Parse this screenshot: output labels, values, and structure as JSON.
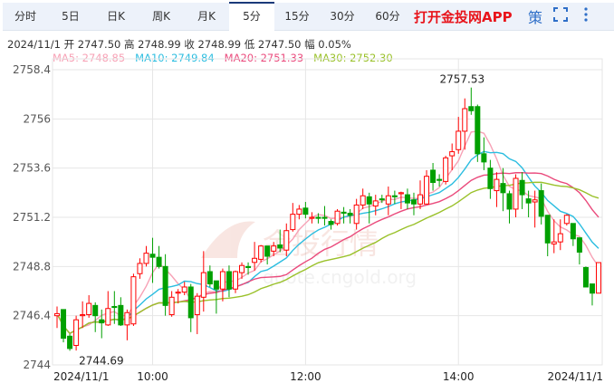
{
  "tabs": [
    {
      "label": "分时"
    },
    {
      "label": "5日"
    },
    {
      "label": "日K"
    },
    {
      "label": "周K"
    },
    {
      "label": "月K"
    },
    {
      "label": "5分",
      "active": true
    },
    {
      "label": "15分"
    },
    {
      "label": "30分"
    },
    {
      "label": "60分"
    }
  ],
  "promo": "打开金投网APP",
  "icons": {
    "strategy": "策",
    "fullscreen": "fullscreen-icon",
    "more": "more-vertical-icon"
  },
  "info": {
    "date": "2024/11/1",
    "open_label": "开",
    "open": "2747.50",
    "high_label": "高",
    "high": "2748.99",
    "close_label": "收",
    "close": "2748.99",
    "low_label": "低",
    "low": "2747.50",
    "change_label": "幅",
    "change": "0.05%"
  },
  "ma": {
    "ma5": "MA5: 2748.85",
    "ma10": "MA10: 2749.84",
    "ma20": "MA20: 2751.33",
    "ma30": "MA30: 2752.30"
  },
  "colors": {
    "up": "#ff0000",
    "down": "#00a000",
    "ma5": "#f7a1b5",
    "ma10": "#2bbde0",
    "ma20": "#ea4a7c",
    "ma30": "#9ac12a",
    "grid": "#e6e6e6"
  },
  "watermark": {
    "cn": "金投行情",
    "url": "quote.cngold.org"
  },
  "chart_data": {
    "type": "candlestick",
    "ylim": [
      2744,
      2758.4
    ],
    "yticks": [
      "2758.4",
      "2756",
      "2753.6",
      "2751.2",
      "2748.8",
      "2746.4",
      "2744"
    ],
    "xtick_labels": [
      {
        "label": "2024/11/1",
        "index": 0
      },
      {
        "label": "10:00",
        "index": 15
      },
      {
        "label": "12:00",
        "index": 39
      },
      {
        "label": "14:00",
        "index": 63
      },
      {
        "label": "2024/11/1",
        "index": 85
      }
    ],
    "max_label": "2757.53",
    "min_label": "2744.69",
    "grid": true,
    "ohlc": [
      [
        2746.4,
        2746.85,
        2745.8,
        2746.5
      ],
      [
        2746.7,
        2746.7,
        2745.1,
        2745.3
      ],
      [
        2745.4,
        2745.5,
        2744.69,
        2744.8
      ],
      [
        2744.95,
        2746.4,
        2744.7,
        2746.2
      ],
      [
        2746.4,
        2747.1,
        2745.8,
        2746.45
      ],
      [
        2746.45,
        2747.4,
        2746.3,
        2747.0
      ],
      [
        2746.9,
        2747.05,
        2745.6,
        2746.4
      ],
      [
        2746.2,
        2746.7,
        2745.3,
        2746.05
      ],
      [
        2745.95,
        2747.6,
        2745.9,
        2746.75
      ],
      [
        2746.85,
        2747.6,
        2746.0,
        2746.8
      ],
      [
        2746.9,
        2747.3,
        2745.9,
        2745.95
      ],
      [
        2745.95,
        2746.7,
        2745.2,
        2746.55
      ],
      [
        2746.0,
        2748.45,
        2745.9,
        2748.3
      ],
      [
        2748.45,
        2749.2,
        2748.2,
        2748.95
      ],
      [
        2748.95,
        2749.8,
        2748.8,
        2749.45
      ],
      [
        2749.4,
        2750.2,
        2748.0,
        2749.25
      ],
      [
        2749.25,
        2749.8,
        2748.7,
        2748.8
      ],
      [
        2748.8,
        2749.4,
        2746.4,
        2746.9
      ],
      [
        2746.45,
        2747.6,
        2746.35,
        2747.3
      ],
      [
        2747.5,
        2747.7,
        2747.0,
        2747.55
      ],
      [
        2747.55,
        2748.05,
        2747.4,
        2747.8
      ],
      [
        2747.8,
        2747.95,
        2745.6,
        2746.3
      ],
      [
        2746.45,
        2747.5,
        2745.5,
        2747.35
      ],
      [
        2747.3,
        2749.55,
        2746.6,
        2748.5
      ],
      [
        2748.55,
        2748.85,
        2747.8,
        2747.95
      ],
      [
        2748.1,
        2748.1,
        2746.5,
        2747.7
      ],
      [
        2747.7,
        2748.7,
        2747.1,
        2748.55
      ],
      [
        2748.55,
        2748.85,
        2747.3,
        2747.7
      ],
      [
        2747.7,
        2748.6,
        2747.5,
        2748.55
      ],
      [
        2748.5,
        2749.0,
        2748.2,
        2748.85
      ],
      [
        2748.8,
        2749.0,
        2748.4,
        2748.75
      ],
      [
        2749.0,
        2750.0,
        2748.6,
        2749.2
      ],
      [
        2749.15,
        2749.85,
        2749.0,
        2749.8
      ],
      [
        2749.8,
        2749.8,
        2748.9,
        2749.3
      ],
      [
        2749.55,
        2750.0,
        2749.3,
        2749.8
      ],
      [
        2749.85,
        2750.6,
        2749.5,
        2749.7
      ],
      [
        2749.6,
        2750.9,
        2749.3,
        2750.55
      ],
      [
        2750.6,
        2751.9,
        2750.5,
        2751.35
      ],
      [
        2751.35,
        2751.8,
        2751.1,
        2751.6
      ],
      [
        2751.65,
        2751.95,
        2751.15,
        2751.35
      ],
      [
        2751.15,
        2751.45,
        2750.9,
        2751.2
      ],
      [
        2751.2,
        2751.4,
        2750.9,
        2751.15
      ],
      [
        2751.2,
        2751.75,
        2750.8,
        2751.15
      ],
      [
        2751.0,
        2751.1,
        2750.6,
        2750.85
      ],
      [
        2750.9,
        2751.6,
        2750.8,
        2751.5
      ],
      [
        2751.45,
        2751.7,
        2750.9,
        2751.4
      ],
      [
        2751.4,
        2751.6,
        2750.9,
        2751.3
      ],
      [
        2750.9,
        2752.1,
        2750.6,
        2751.8
      ],
      [
        2751.8,
        2752.6,
        2751.6,
        2752.25
      ],
      [
        2752.2,
        2752.4,
        2750.9,
        2751.85
      ],
      [
        2751.75,
        2752.3,
        2751.3,
        2752.0
      ],
      [
        2752.1,
        2752.3,
        2751.9,
        2752.05
      ],
      [
        2751.85,
        2752.7,
        2751.3,
        2752.25
      ],
      [
        2752.25,
        2752.5,
        2751.85,
        2752.2
      ],
      [
        2752.35,
        2752.45,
        2751.6,
        2752.4
      ],
      [
        2752.3,
        2752.6,
        2751.6,
        2751.9
      ],
      [
        2752.05,
        2752.4,
        2751.3,
        2751.85
      ],
      [
        2751.85,
        2753.0,
        2751.6,
        2752.3
      ],
      [
        2751.85,
        2753.5,
        2751.9,
        2753.2
      ],
      [
        2753.5,
        2753.85,
        2752.5,
        2752.9
      ],
      [
        2753.05,
        2753.3,
        2752.7,
        2753.0
      ],
      [
        2752.95,
        2754.2,
        2752.8,
        2754.1
      ],
      [
        2754.2,
        2754.8,
        2753.5,
        2754.4
      ],
      [
        2754.5,
        2756.1,
        2754.3,
        2755.4
      ],
      [
        2755.4,
        2757.0,
        2754.5,
        2756.5
      ],
      [
        2756.6,
        2757.53,
        2756.2,
        2756.4
      ],
      [
        2756.6,
        2756.7,
        2753.9,
        2754.3
      ],
      [
        2754.3,
        2755.1,
        2753.5,
        2753.9
      ],
      [
        2753.6,
        2754.0,
        2752.1,
        2752.6
      ],
      [
        2752.5,
        2753.4,
        2751.7,
        2753.05
      ],
      [
        2752.85,
        2753.6,
        2751.5,
        2752.4
      ],
      [
        2752.35,
        2752.5,
        2750.9,
        2751.6
      ],
      [
        2751.6,
        2753.3,
        2751.2,
        2753.1
      ],
      [
        2753.0,
        2753.4,
        2751.6,
        2752.3
      ],
      [
        2752.1,
        2752.5,
        2751.2,
        2751.9
      ],
      [
        2751.95,
        2752.5,
        2750.7,
        2752.05
      ],
      [
        2752.5,
        2752.85,
        2750.85,
        2751.25
      ],
      [
        2751.3,
        2751.3,
        2749.3,
        2749.95
      ],
      [
        2749.9,
        2751.1,
        2749.45,
        2750.0
      ],
      [
        2750.0,
        2751.1,
        2749.6,
        2750.4
      ],
      [
        2750.9,
        2751.35,
        2750.8,
        2751.3
      ],
      [
        2750.9,
        2750.9,
        2749.8,
        2750.15
      ],
      [
        2750.2,
        2750.2,
        2748.9,
        2749.5
      ],
      [
        2748.75,
        2748.8,
        2747.8,
        2747.8
      ],
      [
        2747.95,
        2747.95,
        2746.9,
        2747.5
      ],
      [
        2747.5,
        2748.99,
        2747.5,
        2748.99
      ]
    ]
  }
}
